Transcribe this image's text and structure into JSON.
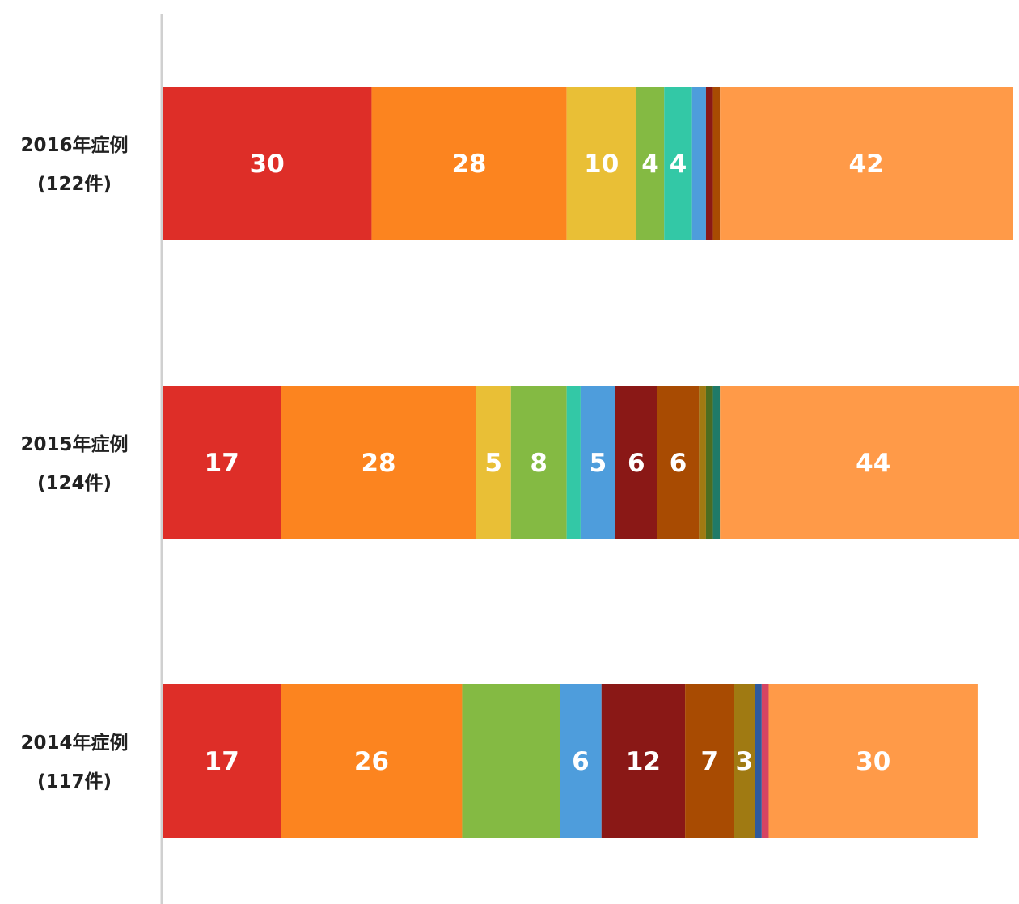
{
  "chart_data": {
    "type": "bar",
    "orientation": "horizontal",
    "stacked": true,
    "title": "",
    "xlabel": "",
    "ylabel": "",
    "xlim": [
      0,
      122
    ],
    "grid": false,
    "legend": "none",
    "categories": [
      {
        "line1": "2016年症例",
        "line2": "(122件)"
      },
      {
        "line1": "2015年症例",
        "line2": "(124件)"
      },
      {
        "line1": "2014年症例",
        "line2": "(117件)"
      }
    ],
    "series": [
      {
        "color": "#de2e28",
        "values": [
          30,
          17,
          17
        ],
        "labels": [
          "30",
          "17",
          "17"
        ]
      },
      {
        "color": "#fc841f",
        "values": [
          28,
          28,
          26
        ],
        "labels": [
          "28",
          "28",
          "26"
        ]
      },
      {
        "color": "#e9bf36",
        "values": [
          10,
          5,
          0
        ],
        "labels": [
          "10",
          "5",
          ""
        ]
      },
      {
        "color": "#84ba43",
        "values": [
          4,
          8,
          14
        ],
        "labels": [
          "4",
          "8",
          ""
        ]
      },
      {
        "color": "#33c8a6",
        "values": [
          4,
          2,
          0
        ],
        "labels": [
          "4",
          "2",
          ""
        ]
      },
      {
        "color": "#4e9ddc",
        "values": [
          2,
          5,
          6
        ],
        "labels": [
          "2",
          "5",
          "6"
        ]
      },
      {
        "color": "#8a1816",
        "values": [
          1,
          6,
          12
        ],
        "labels": [
          "",
          "6",
          "12"
        ]
      },
      {
        "color": "#a84b02",
        "values": [
          1,
          6,
          7
        ],
        "labels": [
          "",
          "6",
          "7"
        ]
      },
      {
        "color": "#a07a12",
        "values": [
          0,
          1,
          3
        ],
        "labels": [
          "",
          "",
          "3"
        ]
      },
      {
        "color": "#4c6d20",
        "values": [
          0,
          1,
          0
        ],
        "labels": [
          "",
          "",
          ""
        ]
      },
      {
        "color": "#1f7a68",
        "values": [
          0,
          1,
          0
        ],
        "labels": [
          "",
          "",
          ""
        ]
      },
      {
        "color": "#2f5a9c",
        "values": [
          0,
          0,
          1
        ],
        "labels": [
          "",
          "",
          ""
        ]
      },
      {
        "color": "#d64462",
        "values": [
          0,
          0,
          1
        ],
        "labels": [
          "",
          "",
          ""
        ]
      },
      {
        "color": "#ff9a48",
        "values": [
          42,
          44,
          30
        ],
        "labels": [
          "42",
          "44",
          "30"
        ]
      }
    ]
  }
}
